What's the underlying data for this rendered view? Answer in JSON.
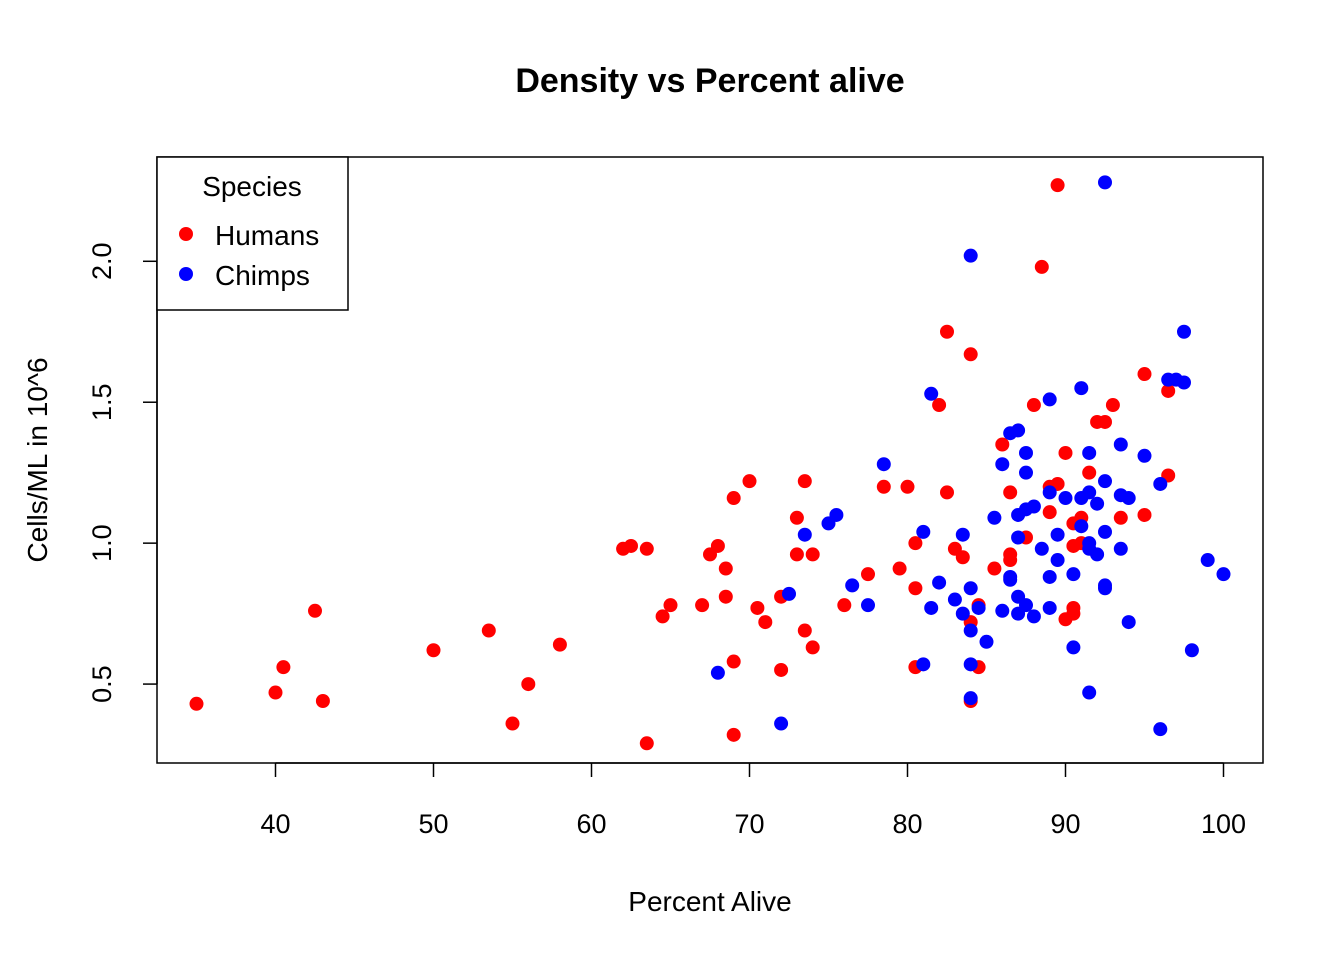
{
  "chart_data": {
    "type": "scatter",
    "title": "Density vs Percent alive",
    "xlabel": "Percent Alive",
    "ylabel": "Cells/ML in 10^6",
    "xlim": [
      32.5,
      102.5
    ],
    "ylim": [
      0.22,
      2.37
    ],
    "xticks": [
      40,
      50,
      60,
      70,
      80,
      90,
      100
    ],
    "yticks": [
      0.5,
      1.0,
      1.5,
      2.0
    ],
    "ytick_labels": [
      "0.5",
      "1.0",
      "1.5",
      "2.0"
    ],
    "grid": false,
    "legend": {
      "title": "Species",
      "position": "top-left"
    },
    "series": [
      {
        "name": "Humans",
        "color": "#ff0000",
        "points": [
          [
            35,
            0.43
          ],
          [
            40,
            0.47
          ],
          [
            40.5,
            0.56
          ],
          [
            42.5,
            0.76
          ],
          [
            43,
            0.44
          ],
          [
            50,
            0.62
          ],
          [
            53.5,
            0.69
          ],
          [
            55,
            0.36
          ],
          [
            56,
            0.5
          ],
          [
            58,
            0.64
          ],
          [
            62,
            0.98
          ],
          [
            62.5,
            0.99
          ],
          [
            63.5,
            0.98
          ],
          [
            63.5,
            0.29
          ],
          [
            64.5,
            0.74
          ],
          [
            65,
            0.78
          ],
          [
            67,
            0.78
          ],
          [
            67.5,
            0.96
          ],
          [
            68,
            0.99
          ],
          [
            68.5,
            0.91
          ],
          [
            68.5,
            0.81
          ],
          [
            69,
            1.16
          ],
          [
            69,
            0.58
          ],
          [
            69,
            0.32
          ],
          [
            70,
            1.22
          ],
          [
            70.5,
            0.77
          ],
          [
            71,
            0.72
          ],
          [
            72,
            0.81
          ],
          [
            72,
            0.55
          ],
          [
            73,
            1.09
          ],
          [
            73,
            0.96
          ],
          [
            73.5,
            1.22
          ],
          [
            73.5,
            0.69
          ],
          [
            74,
            0.96
          ],
          [
            74,
            0.63
          ],
          [
            76,
            0.78
          ],
          [
            77.5,
            0.89
          ],
          [
            78.5,
            1.2
          ],
          [
            79.5,
            0.91
          ],
          [
            80,
            1.2
          ],
          [
            80.5,
            1.0
          ],
          [
            80.5,
            0.84
          ],
          [
            80.5,
            0.56
          ],
          [
            82,
            1.49
          ],
          [
            82.5,
            1.75
          ],
          [
            82.5,
            1.18
          ],
          [
            83,
            0.98
          ],
          [
            83.5,
            0.95
          ],
          [
            84,
            1.67
          ],
          [
            84,
            0.72
          ],
          [
            84,
            0.44
          ],
          [
            84.5,
            0.78
          ],
          [
            84.5,
            0.56
          ],
          [
            85.5,
            0.91
          ],
          [
            86,
            1.35
          ],
          [
            86.5,
            1.18
          ],
          [
            86.5,
            0.96
          ],
          [
            86.5,
            0.94
          ],
          [
            87.5,
            1.02
          ],
          [
            88,
            1.49
          ],
          [
            88.5,
            1.98
          ],
          [
            89,
            1.2
          ],
          [
            89,
            1.11
          ],
          [
            89.5,
            2.27
          ],
          [
            89.5,
            1.21
          ],
          [
            90,
            1.32
          ],
          [
            90,
            0.73
          ],
          [
            90.5,
            1.07
          ],
          [
            90.5,
            0.99
          ],
          [
            90.5,
            0.77
          ],
          [
            90.5,
            0.75
          ],
          [
            91,
            1.09
          ],
          [
            91,
            1.0
          ],
          [
            91.5,
            1.25
          ],
          [
            92,
            1.43
          ],
          [
            92.5,
            1.43
          ],
          [
            93,
            1.49
          ],
          [
            93.5,
            1.09
          ],
          [
            95,
            1.6
          ],
          [
            95,
            1.1
          ],
          [
            96.5,
            1.54
          ],
          [
            96.5,
            1.24
          ]
        ]
      },
      {
        "name": "Chimps",
        "color": "#0000ff",
        "points": [
          [
            68,
            0.54
          ],
          [
            72,
            0.36
          ],
          [
            72.5,
            0.82
          ],
          [
            73.5,
            1.03
          ],
          [
            75,
            1.07
          ],
          [
            75.5,
            1.1
          ],
          [
            76.5,
            0.85
          ],
          [
            77.5,
            0.78
          ],
          [
            78.5,
            1.28
          ],
          [
            81,
            1.04
          ],
          [
            81,
            0.57
          ],
          [
            81.5,
            1.53
          ],
          [
            81.5,
            0.77
          ],
          [
            82,
            0.86
          ],
          [
            83,
            0.8
          ],
          [
            83.5,
            1.03
          ],
          [
            83.5,
            0.75
          ],
          [
            84,
            2.02
          ],
          [
            84,
            0.84
          ],
          [
            84,
            0.69
          ],
          [
            84,
            0.57
          ],
          [
            84,
            0.45
          ],
          [
            84.5,
            0.77
          ],
          [
            85,
            0.65
          ],
          [
            85.5,
            1.09
          ],
          [
            86,
            1.28
          ],
          [
            86,
            0.76
          ],
          [
            86.5,
            1.39
          ],
          [
            86.5,
            0.87
          ],
          [
            86.5,
            0.88
          ],
          [
            87,
            1.4
          ],
          [
            87,
            1.1
          ],
          [
            87,
            1.02
          ],
          [
            87,
            0.81
          ],
          [
            87,
            0.75
          ],
          [
            87.5,
            1.32
          ],
          [
            87.5,
            1.25
          ],
          [
            87.5,
            1.12
          ],
          [
            87.5,
            0.78
          ],
          [
            88,
            1.13
          ],
          [
            88,
            0.74
          ],
          [
            88.5,
            0.98
          ],
          [
            89,
            1.51
          ],
          [
            89,
            1.18
          ],
          [
            89,
            0.88
          ],
          [
            89,
            0.77
          ],
          [
            89.5,
            1.03
          ],
          [
            89.5,
            0.94
          ],
          [
            90,
            1.16
          ],
          [
            90.5,
            0.89
          ],
          [
            90.5,
            0.63
          ],
          [
            91,
            1.55
          ],
          [
            91,
            1.16
          ],
          [
            91,
            1.06
          ],
          [
            91.5,
            1.32
          ],
          [
            91.5,
            1.18
          ],
          [
            91.5,
            1.0
          ],
          [
            91.5,
            0.98
          ],
          [
            91.5,
            0.47
          ],
          [
            92,
            1.14
          ],
          [
            92,
            0.96
          ],
          [
            92.5,
            2.28
          ],
          [
            92.5,
            1.22
          ],
          [
            92.5,
            1.04
          ],
          [
            92.5,
            0.85
          ],
          [
            92.5,
            0.84
          ],
          [
            93.5,
            1.35
          ],
          [
            93.5,
            1.17
          ],
          [
            93.5,
            0.98
          ],
          [
            94,
            1.16
          ],
          [
            94,
            0.72
          ],
          [
            95,
            1.31
          ],
          [
            96,
            1.21
          ],
          [
            96,
            0.34
          ],
          [
            96.5,
            1.58
          ],
          [
            97,
            1.58
          ],
          [
            97.5,
            1.75
          ],
          [
            97.5,
            1.57
          ],
          [
            98,
            0.62
          ],
          [
            99,
            0.94
          ],
          [
            100,
            0.89
          ]
        ]
      }
    ]
  }
}
